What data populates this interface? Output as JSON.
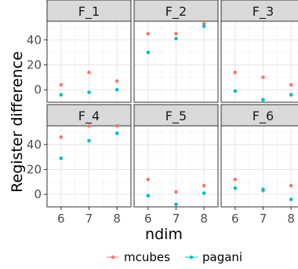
{
  "chart_data": {
    "type": "scatter",
    "facet_by": "function",
    "facets": [
      "F_1",
      "F_2",
      "F_3",
      "F_4",
      "F_5",
      "F_6"
    ],
    "x": [
      6,
      7,
      8
    ],
    "xlabel": "ndim",
    "ylabel": "Register difference",
    "yticks": [
      0,
      20,
      40
    ],
    "ylim": [
      -10,
      55
    ],
    "grid": true,
    "legend_position": "bottom",
    "colors": {
      "mcubes": "#F8766D",
      "pagani": "#00BFC4"
    },
    "series": [
      {
        "name": "mcubes",
        "values": {
          "F_1": [
            4,
            14,
            7
          ],
          "F_2": [
            45,
            45,
            53
          ],
          "F_3": [
            14,
            10,
            4
          ],
          "F_4": [
            46,
            55,
            55
          ],
          "F_5": [
            12,
            2,
            7
          ],
          "F_6": [
            12,
            3,
            7
          ]
        }
      },
      {
        "name": "pagani",
        "values": {
          "F_1": [
            -4,
            -2,
            0
          ],
          "F_2": [
            30,
            41,
            51
          ],
          "F_3": [
            -1,
            -8,
            -4
          ],
          "F_4": [
            29,
            43,
            49
          ],
          "F_5": [
            -1,
            -8,
            1
          ],
          "F_6": [
            5,
            4,
            -4
          ]
        }
      }
    ]
  }
}
